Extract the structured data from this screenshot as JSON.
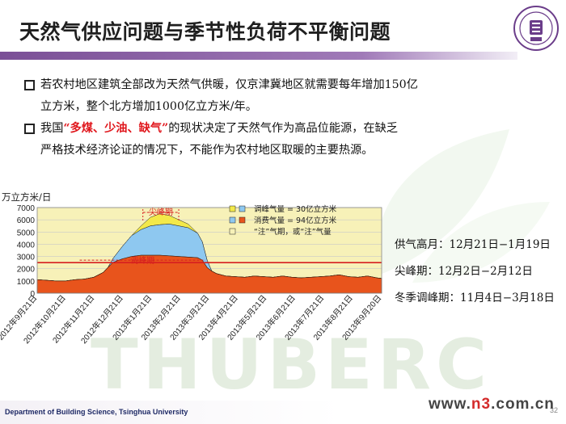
{
  "slide": {
    "title": "天然气供应问题与季节性负荷不平衡问题",
    "bullets": [
      {
        "text_pre": "若农村地区建筑全部改为天然气供暖，仅京津冀地区就需要每年增加150亿",
        "text_line2": "立方米，整个北方增加1000亿立方米/年。"
      },
      {
        "text_pre": "我国",
        "highlight": "“多煤、少油、缺气”",
        "text_post": "的现状决定了天然气作为高品位能源，在缺乏",
        "text_line2": "严格技术经济论证的情况下，不能作为农村地区取暖的主要热源。"
      }
    ],
    "side_notes": [
      "供气高月：12月21日−1月19日",
      "尖峰期：12月2日−2月12日",
      "冬季调峰期：11月4日−3月18日"
    ],
    "footer": "Department of Building  Science, Tsinghua University",
    "page_number": "32",
    "site": {
      "w": "www.",
      "n3": "n3",
      "rest": ".com.cn"
    },
    "watermark": "THUBERC"
  },
  "chart_data": {
    "type": "area",
    "ylabel": "万立方米/日",
    "ylim": [
      0,
      7000
    ],
    "yticks": [
      0,
      1000,
      2000,
      3000,
      4000,
      5000,
      6000,
      7000
    ],
    "xticks": [
      "2012年9月21日",
      "2012年10月21日",
      "2012年11月21日",
      "2012年12月21日",
      "2013年1月21日",
      "2013年2月21日",
      "2013年3月21日",
      "2013年4月21日",
      "2013年5月21日",
      "2013年6月21日",
      "2013年7月21日",
      "2013年8月21日",
      "2013年9月20日"
    ],
    "legend": [
      {
        "label": "调峰气量 = 30亿立方米",
        "swatch": [
          "#f3e94a",
          "#8ec8f0"
        ],
        "sym": "▢+▢"
      },
      {
        "label": "消费气量 = 94亿立方米",
        "swatch": [
          "#8ec8f0",
          "#e8541c"
        ],
        "sym": "▢+▢"
      },
      {
        "label": "“注”气期，或“注”气量",
        "swatch": [
          "#f7f1b8"
        ],
        "sym": "▢"
      }
    ],
    "annotations": [
      "尖峰期",
      "调峰期"
    ],
    "base_load": 2500,
    "x": [
      0,
      10,
      20,
      30,
      40,
      50,
      60,
      65,
      70,
      75,
      80,
      90,
      100,
      110,
      120,
      130,
      140,
      150,
      160,
      170,
      175,
      180,
      185,
      190,
      195,
      200,
      210,
      220,
      230,
      240,
      250,
      260,
      270,
      280,
      290,
      300,
      310,
      320,
      330,
      340,
      350,
      360,
      365
    ],
    "series": [
      {
        "name": "消费气量",
        "color": "#e8541c",
        "values": [
          1100,
          1050,
          1000,
          1000,
          1100,
          1150,
          1300,
          1500,
          1700,
          2100,
          2500,
          2800,
          3000,
          3100,
          3100,
          3100,
          3050,
          3000,
          2950,
          2900,
          2700,
          2100,
          1800,
          1600,
          1500,
          1400,
          1350,
          1300,
          1400,
          1350,
          1300,
          1400,
          1300,
          1250,
          1300,
          1350,
          1400,
          1500,
          1350,
          1300,
          1400,
          1250,
          1200
        ]
      },
      {
        "name": "调峰气量",
        "color": "#8ec8f0",
        "values": [
          0,
          0,
          0,
          0,
          0,
          0,
          0,
          0,
          0,
          0,
          300,
          1000,
          1700,
          2100,
          2400,
          2500,
          2600,
          2500,
          2400,
          2000,
          1500,
          600,
          0,
          0,
          0,
          0,
          0,
          0,
          0,
          0,
          0,
          0,
          0,
          0,
          0,
          0,
          0,
          0,
          0,
          0,
          0,
          0,
          0
        ]
      },
      {
        "name": "尖峰气量",
        "color": "#f3e94a",
        "values": [
          0,
          0,
          0,
          0,
          0,
          0,
          0,
          0,
          0,
          0,
          0,
          0,
          0,
          300,
          700,
          900,
          700,
          500,
          300,
          0,
          0,
          0,
          0,
          0,
          0,
          0,
          0,
          0,
          0,
          0,
          0,
          0,
          0,
          0,
          0,
          0,
          0,
          0,
          0,
          0,
          0,
          0,
          0
        ]
      }
    ]
  }
}
